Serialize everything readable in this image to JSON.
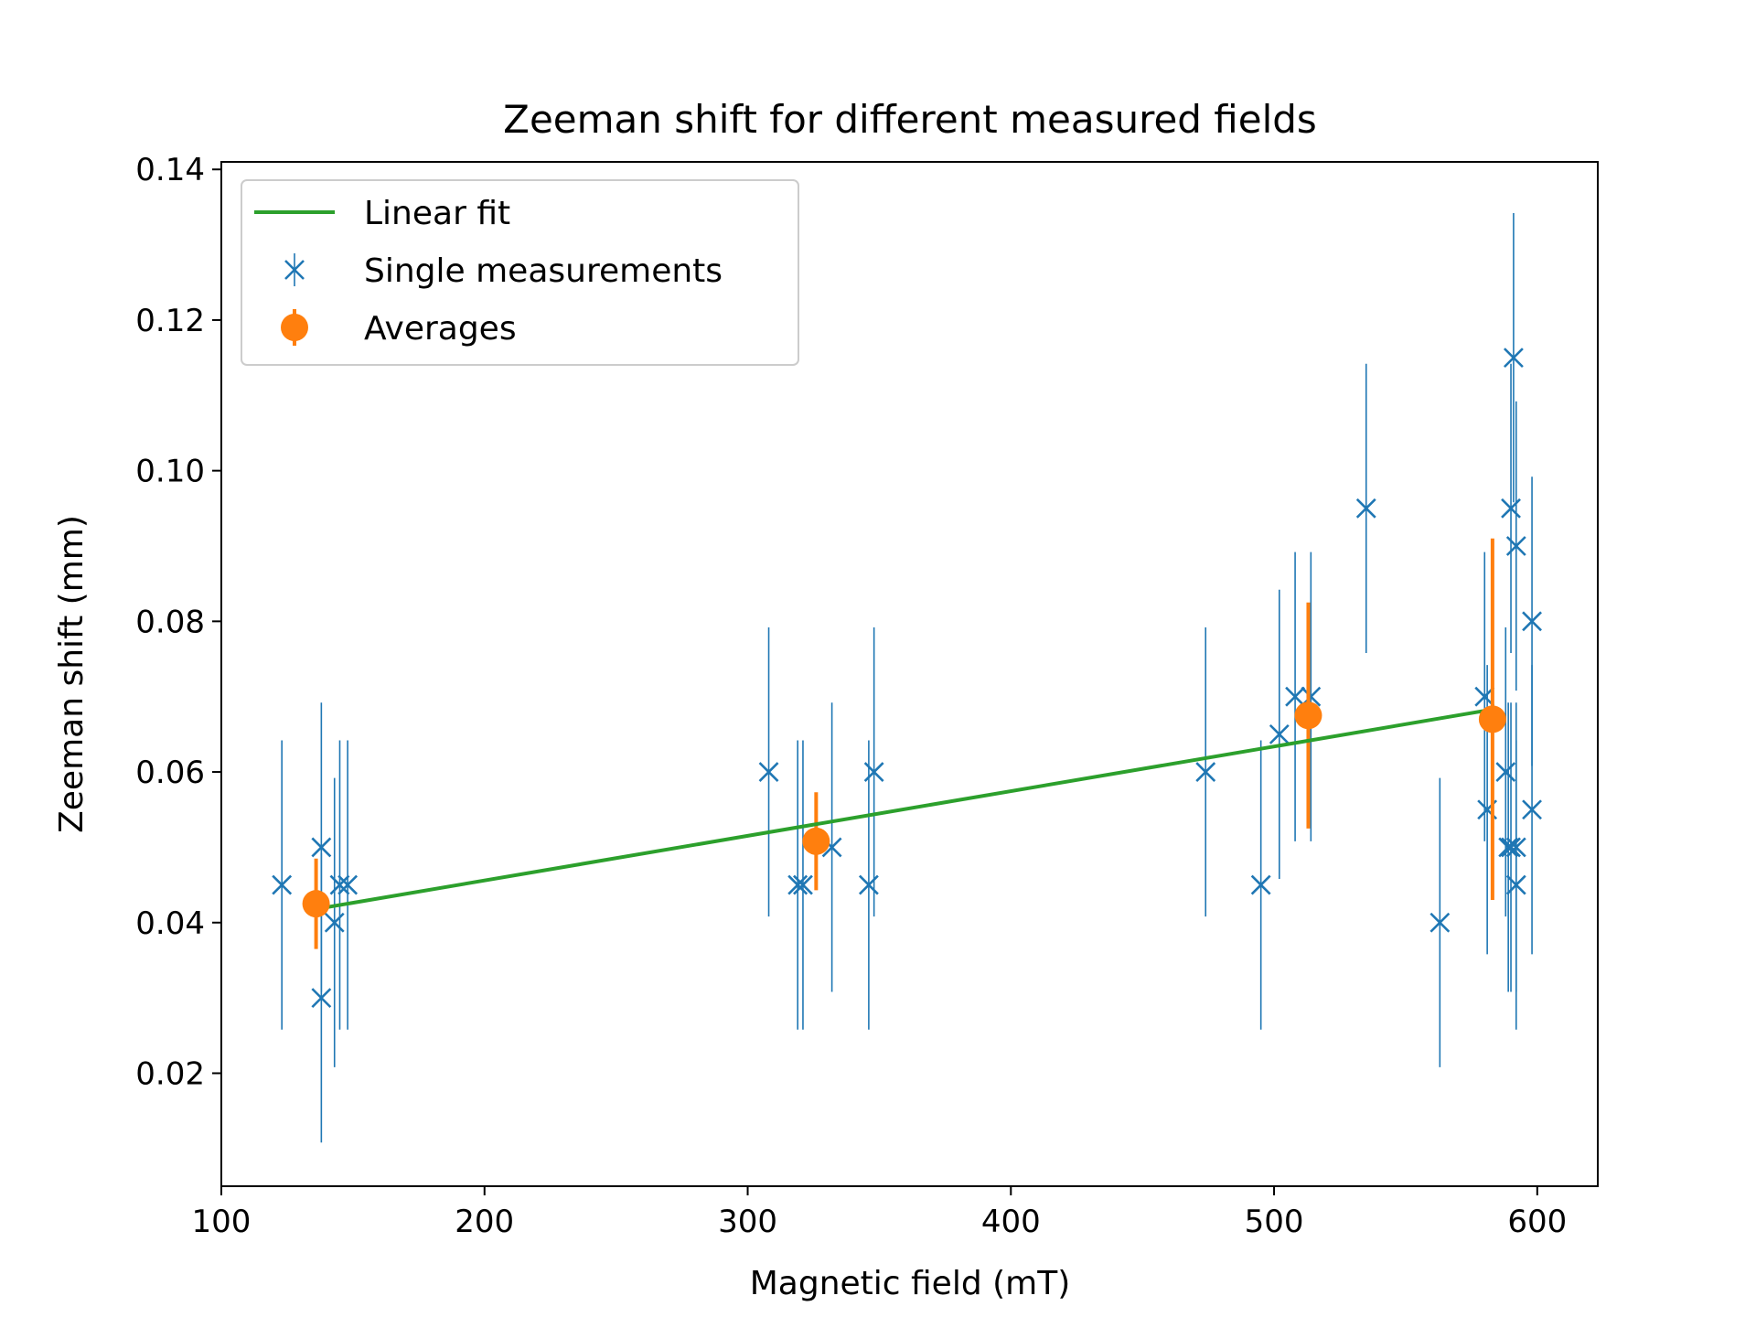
{
  "chart_data": {
    "type": "scatter",
    "title": "Zeeman shift for different measured fields",
    "xlabel": "Magnetic field (mT)",
    "ylabel": "Zeeman shift (mm)",
    "xlim": [
      100,
      623
    ],
    "ylim": [
      0.005,
      0.141
    ],
    "x_ticks": [
      {
        "value": 100,
        "label": "100"
      },
      {
        "value": 200,
        "label": "200"
      },
      {
        "value": 300,
        "label": "300"
      },
      {
        "value": 400,
        "label": "400"
      },
      {
        "value": 500,
        "label": "500"
      },
      {
        "value": 600,
        "label": "600"
      }
    ],
    "y_ticks": [
      {
        "value": 0.02,
        "label": "0.02"
      },
      {
        "value": 0.04,
        "label": "0.04"
      },
      {
        "value": 0.06,
        "label": "0.06"
      },
      {
        "value": 0.08,
        "label": "0.08"
      },
      {
        "value": 0.1,
        "label": "0.10"
      },
      {
        "value": 0.12,
        "label": "0.12"
      },
      {
        "value": 0.14,
        "label": "0.14"
      }
    ],
    "legend": {
      "placement": "upper-left",
      "entries": [
        {
          "series": "fit",
          "label": "Linear fit"
        },
        {
          "series": "single",
          "label": "Single measurements"
        },
        {
          "series": "avg",
          "label": "Averages"
        }
      ]
    },
    "series": [
      {
        "key": "fit",
        "name": "Linear fit",
        "kind": "line",
        "color": "#2ca02c",
        "points": [
          [
            136,
            0.0418
          ],
          [
            583,
            0.0683
          ]
        ]
      },
      {
        "key": "single",
        "name": "Single measurements",
        "kind": "errorbar-x",
        "color": "#1f77b4",
        "points": [
          {
            "x": 123,
            "y": 0.045,
            "err": 0.0192
          },
          {
            "x": 138,
            "y": 0.05,
            "err": 0.0192
          },
          {
            "x": 138,
            "y": 0.03,
            "err": 0.0192
          },
          {
            "x": 143,
            "y": 0.04,
            "err": 0.0192
          },
          {
            "x": 145,
            "y": 0.045,
            "err": 0.0192
          },
          {
            "x": 148,
            "y": 0.045,
            "err": 0.0192
          },
          {
            "x": 308,
            "y": 0.06,
            "err": 0.0192
          },
          {
            "x": 319,
            "y": 0.045,
            "err": 0.0192
          },
          {
            "x": 321,
            "y": 0.045,
            "err": 0.0192
          },
          {
            "x": 332,
            "y": 0.05,
            "err": 0.0192
          },
          {
            "x": 346,
            "y": 0.045,
            "err": 0.0192
          },
          {
            "x": 348,
            "y": 0.06,
            "err": 0.0192
          },
          {
            "x": 474,
            "y": 0.06,
            "err": 0.0192
          },
          {
            "x": 495,
            "y": 0.045,
            "err": 0.0192
          },
          {
            "x": 502,
            "y": 0.065,
            "err": 0.0192
          },
          {
            "x": 508,
            "y": 0.07,
            "err": 0.0192
          },
          {
            "x": 514,
            "y": 0.07,
            "err": 0.0192
          },
          {
            "x": 535,
            "y": 0.095,
            "err": 0.0192
          },
          {
            "x": 563,
            "y": 0.04,
            "err": 0.0192
          },
          {
            "x": 580,
            "y": 0.07,
            "err": 0.0192
          },
          {
            "x": 581,
            "y": 0.055,
            "err": 0.0192
          },
          {
            "x": 588,
            "y": 0.06,
            "err": 0.0192
          },
          {
            "x": 589,
            "y": 0.05,
            "err": 0.0192
          },
          {
            "x": 590,
            "y": 0.095,
            "err": 0.0192
          },
          {
            "x": 590,
            "y": 0.05,
            "err": 0.0192
          },
          {
            "x": 591,
            "y": 0.115,
            "err": 0.0192
          },
          {
            "x": 592,
            "y": 0.09,
            "err": 0.0192
          },
          {
            "x": 592,
            "y": 0.05,
            "err": 0.0192
          },
          {
            "x": 592,
            "y": 0.045,
            "err": 0.0192
          },
          {
            "x": 598,
            "y": 0.08,
            "err": 0.0192
          },
          {
            "x": 598,
            "y": 0.055,
            "err": 0.0192
          }
        ]
      },
      {
        "key": "avg",
        "name": "Averages",
        "kind": "errorbar-circle",
        "color": "#ff7f0e",
        "points": [
          {
            "x": 136,
            "y": 0.0425,
            "err": 0.006
          },
          {
            "x": 326,
            "y": 0.0508,
            "err": 0.0065
          },
          {
            "x": 513,
            "y": 0.0675,
            "err": 0.015
          },
          {
            "x": 583,
            "y": 0.067,
            "err": 0.024
          }
        ]
      }
    ]
  }
}
